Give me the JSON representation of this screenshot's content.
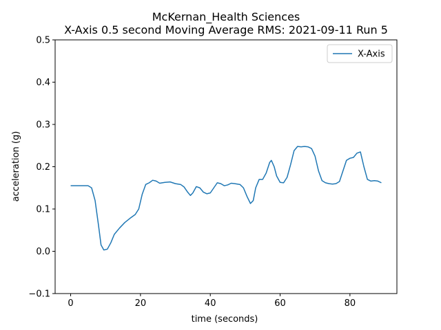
{
  "chart_data": {
    "type": "line",
    "title": "McKernan_Health Sciences",
    "subtitle": "X-Axis 0.5 second Moving Average RMS: 2021-09-11 Run 5",
    "x_label": "time (seconds)",
    "y_label": "acceleration (g)",
    "x": [
      0,
      5,
      6,
      7,
      8,
      8.7,
      9.5,
      10.5,
      11.5,
      12.5,
      14,
      15.5,
      17,
      18.5,
      19.5,
      20.5,
      21.5,
      22.5,
      23.5,
      24.5,
      25.5,
      27,
      28.5,
      30,
      31.5,
      32.5,
      33.5,
      34.3,
      35,
      36,
      37,
      38,
      39,
      40,
      41,
      42,
      43,
      44,
      45,
      46,
      47,
      48.5,
      49.5,
      50.5,
      51.5,
      52.3,
      53,
      54,
      55,
      56,
      57,
      57.5,
      58.3,
      59,
      60,
      61,
      62,
      63,
      64,
      65,
      66,
      67,
      68,
      69,
      70,
      71,
      72,
      73,
      74,
      75,
      76,
      77,
      78,
      79,
      80,
      81,
      82,
      83,
      84,
      85,
      86,
      87,
      88,
      89
    ],
    "series": [
      {
        "name": "X-Axis",
        "color": "#1f77b4",
        "values": [
          0.155,
          0.155,
          0.15,
          0.12,
          0.06,
          0.015,
          0.003,
          0.005,
          0.02,
          0.04,
          0.055,
          0.068,
          0.078,
          0.087,
          0.1,
          0.135,
          0.158,
          0.162,
          0.168,
          0.166,
          0.161,
          0.163,
          0.164,
          0.16,
          0.158,
          0.152,
          0.14,
          0.132,
          0.138,
          0.153,
          0.15,
          0.14,
          0.136,
          0.138,
          0.15,
          0.162,
          0.16,
          0.155,
          0.157,
          0.161,
          0.16,
          0.158,
          0.15,
          0.13,
          0.113,
          0.12,
          0.15,
          0.17,
          0.17,
          0.185,
          0.21,
          0.215,
          0.2,
          0.178,
          0.163,
          0.162,
          0.175,
          0.205,
          0.238,
          0.248,
          0.247,
          0.248,
          0.247,
          0.243,
          0.225,
          0.19,
          0.167,
          0.162,
          0.16,
          0.159,
          0.16,
          0.165,
          0.19,
          0.215,
          0.22,
          0.222,
          0.232,
          0.235,
          0.2,
          0.17,
          0.166,
          0.167,
          0.166,
          0.162
        ]
      }
    ],
    "xlim": [
      -4.45,
      93.45
    ],
    "ylim": [
      -0.1,
      0.5
    ],
    "xticks": [
      0,
      20,
      40,
      60,
      80
    ],
    "yticks": [
      {
        "value": -0.1,
        "label": "−0.1"
      },
      {
        "value": 0,
        "label": "0.0"
      },
      0.1,
      0.2,
      0.3,
      0.4,
      0.5
    ],
    "legend": "upper right"
  }
}
